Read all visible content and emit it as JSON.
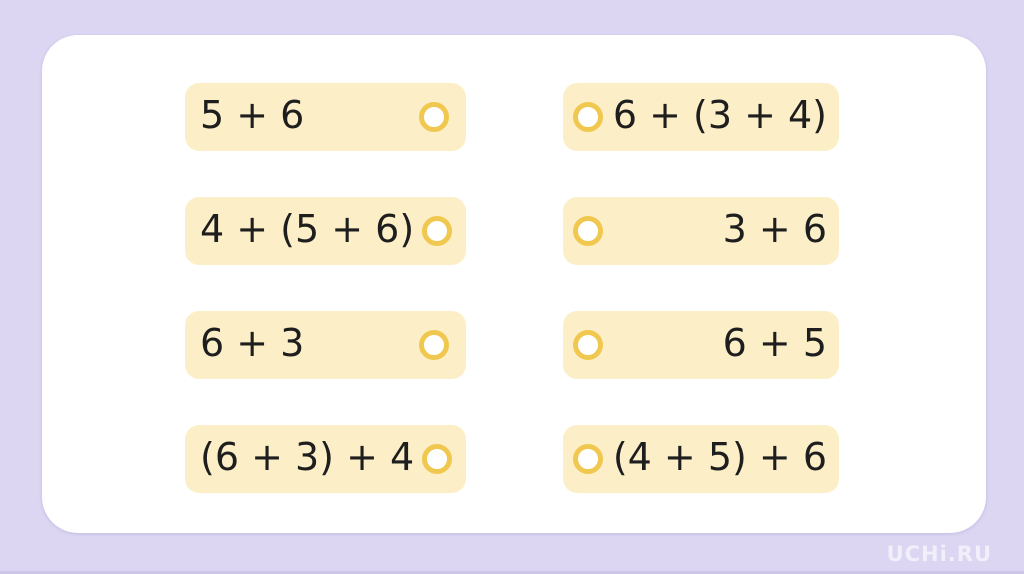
{
  "app": {
    "watermark": "UCHi.RU"
  },
  "colors": {
    "background": "#DCD6F2",
    "panel": "#FFFFFF",
    "card": "#FCEFC8",
    "radio_ring": "#F1C84F",
    "text": "#1E1E1E",
    "watermark_text": "rgba(255,255,255,0.6)"
  },
  "icons": {
    "radio_circle": "unselected-radio-ring"
  },
  "exercise": {
    "type": "match-expressions",
    "left_cards": [
      {
        "expression": "5 + 6"
      },
      {
        "expression": "4 + (5 + 6)"
      },
      {
        "expression": "6 + 3"
      },
      {
        "expression": "(6 + 3) + 4"
      }
    ],
    "right_cards": [
      {
        "expression": "6 + (3 + 4)"
      },
      {
        "expression": "3 + 6"
      },
      {
        "expression": "6 + 5"
      },
      {
        "expression": "(4 + 5) + 6"
      }
    ]
  }
}
